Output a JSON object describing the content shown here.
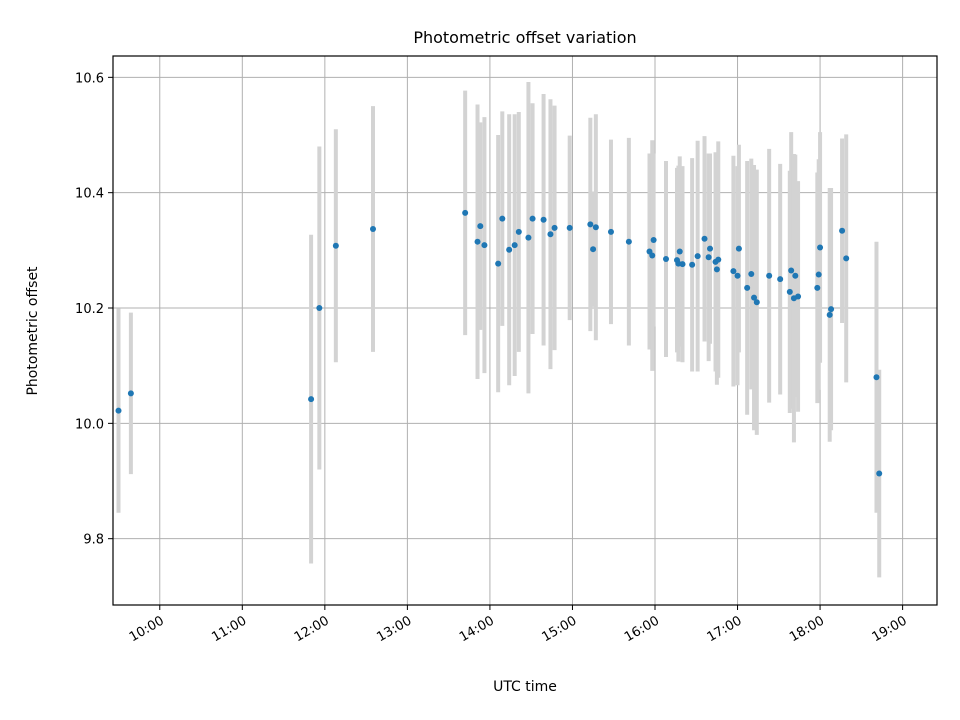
{
  "chart_data": {
    "type": "scatter",
    "title": "Photometric offset variation",
    "xlabel": "UTC time",
    "ylabel": "Photometric offset",
    "x_tick_labels": [
      "10:00",
      "11:00",
      "12:00",
      "13:00",
      "14:00",
      "15:00",
      "16:00",
      "17:00",
      "18:00",
      "19:00"
    ],
    "y_tick_labels": [
      "9.8",
      "10.0",
      "10.2",
      "10.4",
      "10.6"
    ],
    "xlim": [
      "09:26",
      "19:25"
    ],
    "ylim": [
      9.685,
      10.637
    ],
    "grid": true,
    "errorbar_color": "#d3d3d3",
    "marker_color": "#1f77b4",
    "x": [
      "09:30",
      "09:39",
      "11:50",
      "11:56",
      "12:08",
      "12:35",
      "13:42",
      "13:51",
      "13:53",
      "13:56",
      "14:06",
      "14:09",
      "14:14",
      "14:18",
      "14:21",
      "14:28",
      "14:31",
      "14:39",
      "14:44",
      "14:47",
      "14:58",
      "15:13",
      "15:15",
      "15:17",
      "15:28",
      "15:41",
      "15:56",
      "15:58",
      "15:59",
      "16:08",
      "16:16",
      "16:17",
      "16:18",
      "16:20",
      "16:27",
      "16:31",
      "16:36",
      "16:39",
      "16:40",
      "16:44",
      "16:45",
      "16:46",
      "16:57",
      "17:00",
      "17:01",
      "17:07",
      "17:10",
      "17:12",
      "17:14",
      "17:23",
      "17:31",
      "17:38",
      "17:39",
      "17:41",
      "17:42",
      "17:44",
      "17:58",
      "17:59",
      "18:00",
      "18:07",
      "18:08",
      "18:16",
      "18:19",
      "18:41",
      "18:43"
    ],
    "y": [
      10.022,
      10.052,
      10.042,
      10.2,
      10.308,
      10.337,
      10.365,
      10.315,
      10.342,
      10.309,
      10.277,
      10.355,
      10.301,
      10.309,
      10.332,
      10.322,
      10.355,
      10.353,
      10.328,
      10.339,
      10.339,
      10.345,
      10.302,
      10.34,
      10.332,
      10.315,
      10.298,
      10.291,
      10.318,
      10.285,
      10.283,
      10.277,
      10.298,
      10.276,
      10.275,
      10.29,
      10.32,
      10.288,
      10.303,
      10.28,
      10.267,
      10.284,
      10.264,
      10.256,
      10.303,
      10.235,
      10.259,
      10.218,
      10.21,
      10.256,
      10.25,
      10.228,
      10.265,
      10.217,
      10.256,
      10.22,
      10.235,
      10.258,
      10.305,
      10.188,
      10.198,
      10.334,
      10.286,
      10.08,
      9.913
    ],
    "yerr": [
      0.177,
      0.14,
      0.285,
      0.28,
      0.202,
      0.213,
      0.212,
      0.238,
      0.18,
      0.222,
      0.223,
      0.186,
      0.235,
      0.227,
      0.208,
      0.27,
      0.2,
      0.218,
      0.234,
      0.212,
      0.16,
      0.185,
      0.1,
      0.196,
      0.16,
      0.18,
      0.17,
      0.2,
      0.15,
      0.17,
      0.16,
      0.17,
      0.165,
      0.17,
      0.185,
      0.2,
      0.178,
      0.18,
      0.165,
      0.19,
      0.2,
      0.205,
      0.2,
      0.19,
      0.18,
      0.22,
      0.2,
      0.23,
      0.23,
      0.22,
      0.2,
      0.21,
      0.24,
      0.25,
      0.21,
      0.2,
      0.2,
      0.2,
      0.2,
      0.22,
      0.21,
      0.16,
      0.215,
      0.235,
      0.18
    ]
  }
}
